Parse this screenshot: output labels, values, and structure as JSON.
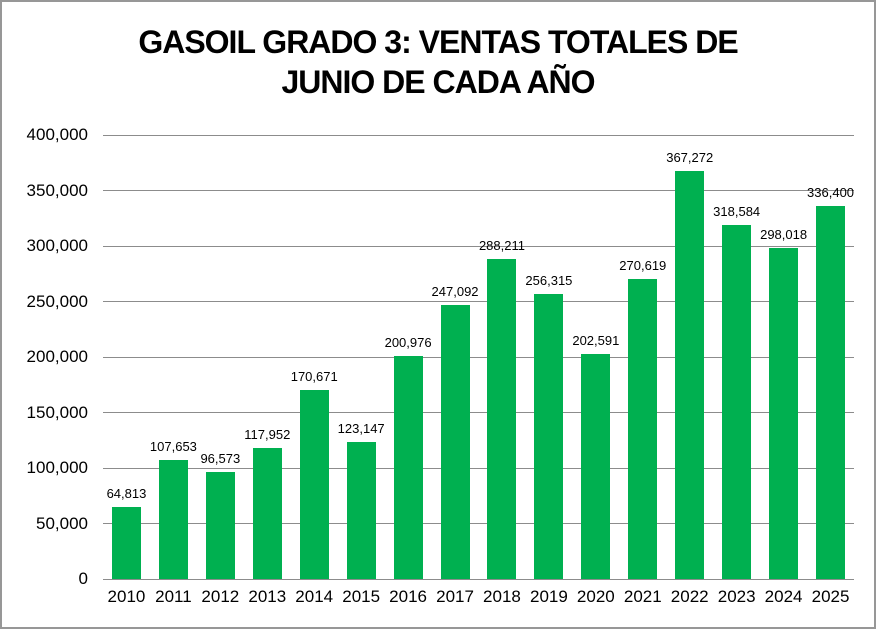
{
  "chart_data": {
    "type": "bar",
    "title": "GASOIL GRADO 3: VENTAS TOTALES DE JUNIO DE CADA AÑO",
    "title_lines": [
      "GASOIL GRADO 3: VENTAS TOTALES DE",
      "JUNIO DE CADA AÑO"
    ],
    "categories": [
      "2010",
      "2011",
      "2012",
      "2013",
      "2014",
      "2015",
      "2016",
      "2017",
      "2018",
      "2019",
      "2020",
      "2021",
      "2022",
      "2023",
      "2024",
      "2025"
    ],
    "values": [
      64813,
      107653,
      96573,
      117952,
      170671,
      123147,
      200976,
      247092,
      288211,
      256315,
      202591,
      270619,
      367272,
      318584,
      298018,
      336400
    ],
    "value_labels": [
      "64,813",
      "107,653",
      "96,573",
      "117,952",
      "170,671",
      "123,147",
      "200,976",
      "247,092",
      "288,211",
      "256,315",
      "202,591",
      "270,619",
      "367,272",
      "318,584",
      "298,018",
      "336,400"
    ],
    "xlabel": "",
    "ylabel": "",
    "ylim": [
      0,
      400000
    ],
    "ytick_step": 50000,
    "ytick_labels": [
      "0",
      "50,000",
      "100,000",
      "150,000",
      "200,000",
      "250,000",
      "300,000",
      "350,000",
      "400,000"
    ],
    "grid": true,
    "legend": "none",
    "colors": {
      "bar": "#00B050",
      "gridline": "#8C8C8C",
      "axis": "#8C8C8C",
      "text": "#000000",
      "frame_border": "#979797",
      "background": "#FFFFFF"
    }
  }
}
